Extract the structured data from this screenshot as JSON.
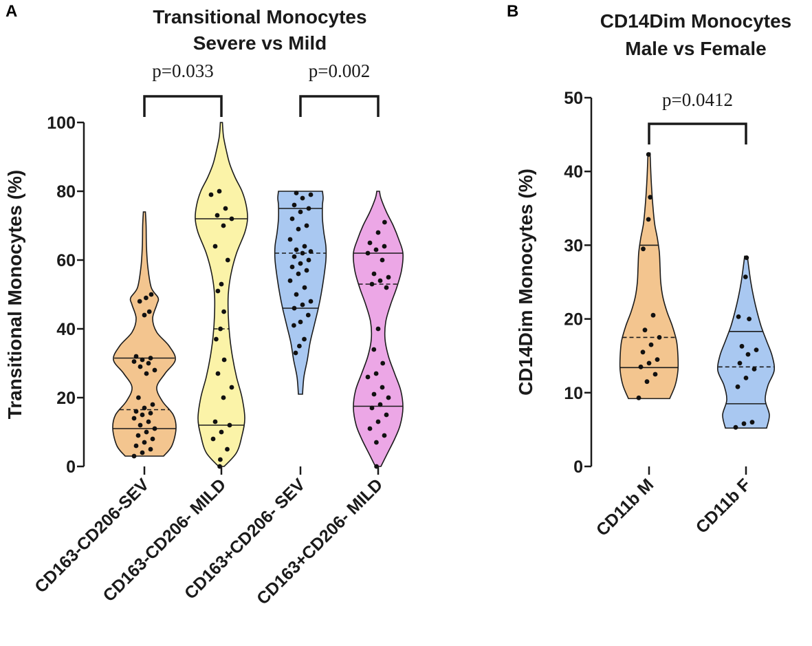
{
  "chart_data": [
    {
      "panel": "A",
      "type": "violin",
      "title_lines": [
        "Transitional Monocytes",
        "Severe vs Mild"
      ],
      "ylabel": "Transitional Monocytes (%)",
      "xlabel": "",
      "ylim": [
        0,
        100
      ],
      "yticks": [
        "0",
        "20",
        "40",
        "60",
        "80",
        "100"
      ],
      "ytick_values": [
        0,
        20,
        40,
        60,
        80,
        100
      ],
      "categories": [
        "CD163-CD206-SEV",
        "CD163-CD206- MILD",
        "CD163+CD206- SEV",
        "CD163+CD206- MILD"
      ],
      "series": [
        {
          "name": "CD163-CD206-SEV",
          "color": "#f3c58f",
          "min": 3,
          "max": 74,
          "q1": 11,
          "median": 16.5,
          "q3": 31.5,
          "density": [
            [
              3,
              28
            ],
            [
              6,
              40
            ],
            [
              11,
              46
            ],
            [
              15,
              42
            ],
            [
              19,
              26
            ],
            [
              23,
              18
            ],
            [
              27,
              30
            ],
            [
              31,
              45
            ],
            [
              35,
              36
            ],
            [
              39,
              18
            ],
            [
              43,
              12
            ],
            [
              47,
              18
            ],
            [
              49,
              20
            ],
            [
              52,
              10
            ],
            [
              58,
              5
            ],
            [
              64,
              3
            ],
            [
              70,
              2.5
            ],
            [
              74,
              1.5
            ]
          ],
          "values": [
            3,
            4,
            5,
            6,
            7,
            8,
            9,
            10,
            11,
            12,
            13,
            14,
            15,
            15.5,
            16,
            17,
            18,
            20,
            27,
            28,
            29,
            30,
            30.5,
            31,
            31.5,
            32,
            44,
            45,
            48,
            49,
            50
          ]
        },
        {
          "name": "CD163-CD206- MILD",
          "color": "#fbf3a8",
          "min": 0,
          "max": 100,
          "q1": 12,
          "median": 40,
          "q3": 72,
          "density": [
            [
              0,
              4
            ],
            [
              4,
              22
            ],
            [
              9,
              30
            ],
            [
              14,
              34
            ],
            [
              20,
              30
            ],
            [
              26,
              22
            ],
            [
              32,
              16
            ],
            [
              38,
              12
            ],
            [
              44,
              10
            ],
            [
              50,
              10
            ],
            [
              56,
              14
            ],
            [
              62,
              22
            ],
            [
              68,
              34
            ],
            [
              72,
              38
            ],
            [
              76,
              36
            ],
            [
              80,
              30
            ],
            [
              84,
              20
            ],
            [
              88,
              12
            ],
            [
              92,
              7
            ],
            [
              96,
              3
            ],
            [
              100,
              1.5
            ]
          ],
          "values": [
            0,
            2,
            5,
            8,
            10,
            12,
            13,
            20,
            23,
            27,
            31,
            37,
            40,
            45,
            51,
            53,
            60,
            64,
            70,
            72,
            73,
            75,
            79,
            80
          ]
        },
        {
          "name": "CD163+CD206- SEV",
          "color": "#a9c8f1",
          "min": 21,
          "max": 80,
          "q1": 46,
          "median": 62,
          "q3": 75,
          "density": [
            [
              21,
              3
            ],
            [
              26,
              5
            ],
            [
              31,
              10
            ],
            [
              36,
              14
            ],
            [
              41,
              20
            ],
            [
              46,
              26
            ],
            [
              50,
              30
            ],
            [
              55,
              34
            ],
            [
              60,
              37
            ],
            [
              64,
              37
            ],
            [
              68,
              34
            ],
            [
              72,
              32
            ],
            [
              76,
              32
            ],
            [
              78,
              33
            ],
            [
              80,
              32
            ]
          ],
          "values": [
            33,
            35,
            37,
            41,
            42,
            44,
            46,
            47,
            48,
            50,
            52,
            54,
            56,
            57,
            58,
            59,
            60,
            61,
            62,
            62.5,
            63,
            64,
            66,
            69,
            70,
            72,
            74,
            75,
            76,
            78,
            79,
            79.5
          ]
        },
        {
          "name": "CD163+CD206- MILD",
          "color": "#eca7e6",
          "min": 0,
          "max": 80,
          "q1": 17.5,
          "median": 53,
          "q3": 62,
          "density": [
            [
              0,
              4
            ],
            [
              4,
              14
            ],
            [
              8,
              24
            ],
            [
              12,
              32
            ],
            [
              17,
              36
            ],
            [
              22,
              33
            ],
            [
              27,
              24
            ],
            [
              32,
              15
            ],
            [
              37,
              10
            ],
            [
              42,
              11
            ],
            [
              47,
              18
            ],
            [
              52,
              27
            ],
            [
              57,
              34
            ],
            [
              62,
              36
            ],
            [
              66,
              30
            ],
            [
              70,
              22
            ],
            [
              74,
              12
            ],
            [
              78,
              4
            ],
            [
              80,
              2
            ]
          ],
          "values": [
            0,
            7,
            9,
            11,
            13,
            15,
            17,
            18,
            20,
            21,
            23,
            26,
            27,
            30,
            34,
            40,
            52,
            53,
            54,
            55,
            56,
            60,
            62,
            63,
            64,
            65,
            68,
            71
          ]
        }
      ],
      "comparisons": [
        {
          "label": "p=0.033",
          "from": "CD163-CD206-SEV",
          "to": "CD163-CD206- MILD"
        },
        {
          "label": "p=0.002",
          "from": "CD163+CD206- SEV",
          "to": "CD163+CD206- MILD"
        }
      ]
    },
    {
      "panel": "B",
      "type": "violin",
      "title_lines": [
        "CD14Dim Monocytes",
        "Male vs Female"
      ],
      "ylabel": "CD14Dim Monocytes (%)",
      "xlabel": "",
      "ylim": [
        0,
        50
      ],
      "yticks": [
        "0",
        "10",
        "20",
        "30",
        "40",
        "50"
      ],
      "ytick_values": [
        0,
        10,
        20,
        30,
        40,
        50
      ],
      "categories": [
        "CD11b M",
        "CD11b F"
      ],
      "series": [
        {
          "name": "CD11b M",
          "color": "#f3c58f",
          "min": 9.2,
          "max": 42.5,
          "q1": 13.4,
          "median": 17.5,
          "q3": 30,
          "density": [
            [
              9.2,
              30
            ],
            [
              11,
              38
            ],
            [
              13,
              42
            ],
            [
              15,
              42
            ],
            [
              17,
              40
            ],
            [
              19,
              34
            ],
            [
              21,
              26
            ],
            [
              23,
              20
            ],
            [
              25,
              17
            ],
            [
              27,
              16
            ],
            [
              29,
              15
            ],
            [
              31,
              12
            ],
            [
              33,
              8
            ],
            [
              36,
              5
            ],
            [
              39,
              3
            ],
            [
              42.5,
              1.5
            ]
          ],
          "values": [
            9.3,
            11.5,
            12.5,
            13.5,
            14,
            14.5,
            15.5,
            16.5,
            17.5,
            18.5,
            20.5,
            29.5,
            33.5,
            36.5,
            42.3
          ]
        },
        {
          "name": "CD11b F",
          "color": "#a9c8f1",
          "min": 5.2,
          "max": 28.5,
          "q1": 8.5,
          "median": 13.5,
          "q3": 18.3,
          "density": [
            [
              5.2,
              30
            ],
            [
              7,
              34
            ],
            [
              9,
              28
            ],
            [
              11,
              32
            ],
            [
              13,
              41
            ],
            [
              15,
              38
            ],
            [
              17,
              30
            ],
            [
              19,
              22
            ],
            [
              21,
              16
            ],
            [
              23,
              11
            ],
            [
              25,
              7
            ],
            [
              27,
              4
            ],
            [
              28.5,
              2
            ]
          ],
          "values": [
            5.3,
            5.8,
            6,
            10.8,
            12,
            13.2,
            14,
            15.2,
            15.8,
            16.3,
            20,
            20.3,
            25.7,
            28.3
          ]
        }
      ],
      "comparisons": [
        {
          "label": "p=0.0412",
          "from": "CD11b M",
          "to": "CD11b F"
        }
      ]
    }
  ]
}
